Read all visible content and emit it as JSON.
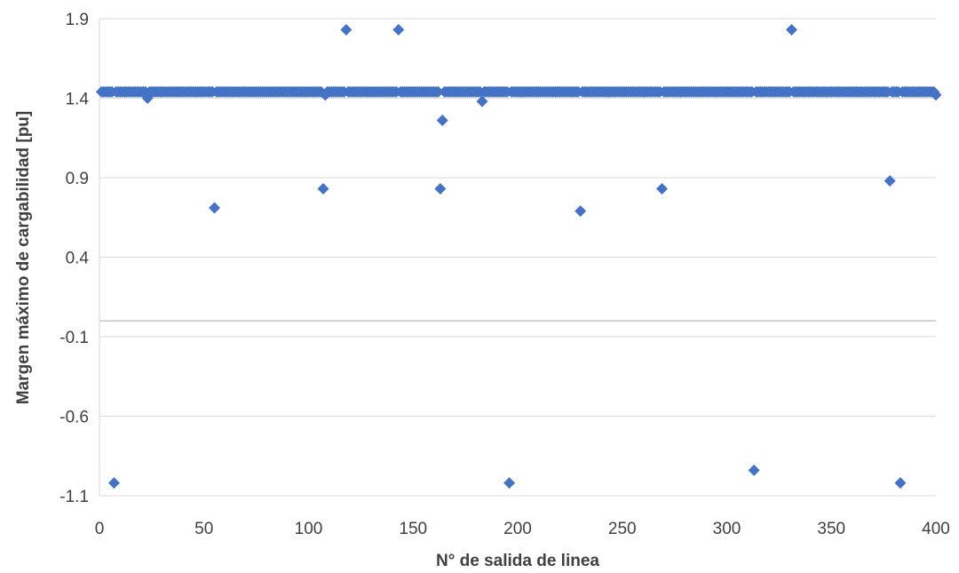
{
  "chart_data": {
    "type": "scatter",
    "xlabel": "N° de salida de linea",
    "ylabel": "Margen máximo de cargabilidad [pu]",
    "xlim": [
      0,
      400
    ],
    "ylim": [
      -1.1,
      1.9
    ],
    "x_ticks": [
      "0",
      "50",
      "100",
      "150",
      "200",
      "250",
      "300",
      "350",
      "400"
    ],
    "y_ticks": [
      "1.9",
      "1.4",
      "0.9",
      "0.4",
      "-0.1",
      "-0.6",
      "-1.1"
    ],
    "grid": "horizontal",
    "reference_line_y": 0,
    "legend": "none",
    "marker": "diamond",
    "color": "#4472C4",
    "baseline_value": 1.44,
    "baseline_range": [
      1,
      400
    ],
    "outliers": [
      {
        "x": 7,
        "y": -1.02
      },
      {
        "x": 23,
        "y": 1.4
      },
      {
        "x": 55,
        "y": 0.71
      },
      {
        "x": 107,
        "y": 0.83
      },
      {
        "x": 108,
        "y": 1.42
      },
      {
        "x": 118,
        "y": 1.83
      },
      {
        "x": 143,
        "y": 1.83
      },
      {
        "x": 163,
        "y": 0.83
      },
      {
        "x": 164,
        "y": 1.26
      },
      {
        "x": 183,
        "y": 1.38
      },
      {
        "x": 196,
        "y": -1.02
      },
      {
        "x": 230,
        "y": 0.69
      },
      {
        "x": 269,
        "y": 0.83
      },
      {
        "x": 313,
        "y": -0.94
      },
      {
        "x": 331,
        "y": 1.83
      },
      {
        "x": 378,
        "y": 0.88
      },
      {
        "x": 383,
        "y": -1.02
      },
      {
        "x": 400,
        "y": 1.42
      }
    ]
  }
}
